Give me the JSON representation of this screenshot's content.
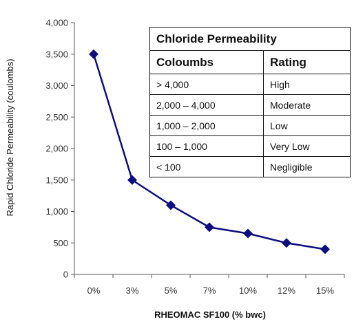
{
  "chart_data": {
    "type": "line",
    "categories": [
      "0%",
      "3%",
      "5%",
      "7%",
      "10%",
      "12%",
      "15%"
    ],
    "series": [
      {
        "values": [
          3500,
          1500,
          1100,
          750,
          650,
          500,
          400
        ],
        "color": "#0d0d80"
      }
    ],
    "xlabel": "RHEOMAC SF100 (% bwc)",
    "ylabel": "Rapid Chloride Permeability (coulombs)",
    "ylim": [
      0,
      4000
    ],
    "yticks": [
      0,
      500,
      1000,
      1500,
      2000,
      2500,
      3000,
      3500,
      4000
    ],
    "ytick_labels": [
      "0",
      "500",
      "1,000",
      "1,500",
      "2,000",
      "2,500",
      "3,000",
      "3,500",
      "4,000"
    ],
    "grid": false,
    "marker": "diamond",
    "table": {
      "title": "Chloride Permeability",
      "headers": [
        "Coloumbs",
        "Rating"
      ],
      "rows": [
        [
          "> 4,000",
          "High"
        ],
        [
          "2,000 – 4,000",
          "Moderate"
        ],
        [
          "1,000 – 2,000",
          "Low"
        ],
        [
          "100 – 1,000",
          "Very Low"
        ],
        [
          "< 100",
          "Negligible"
        ]
      ]
    }
  }
}
